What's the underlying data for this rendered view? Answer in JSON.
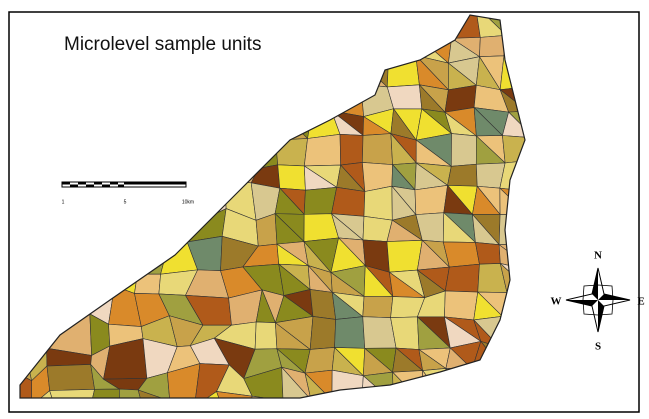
{
  "title": "Microlevel sample units",
  "scale_bar": {
    "labels": [
      "1",
      "5",
      "10km"
    ]
  },
  "compass": {
    "north": "N",
    "south": "S",
    "east": "E",
    "west": "W"
  }
}
